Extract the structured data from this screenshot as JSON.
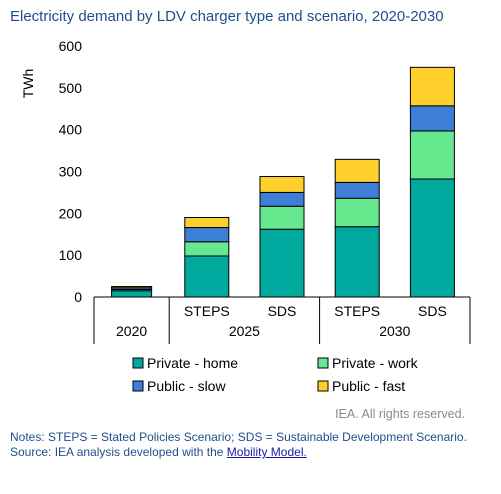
{
  "title": "Electricity demand by LDV charger type and scenario, 2020-2030",
  "credit": "IEA. All rights reserved.",
  "notes": {
    "line1": "Notes: STEPS = Stated Policies Scenario; SDS = Sustainable Development Scenario.",
    "source_prefix": "Source: IEA analysis developed with the ",
    "source_link": "Mobility Model."
  },
  "chart_data": {
    "type": "bar",
    "stacked": true,
    "ylabel": "TWh",
    "ylim": [
      0,
      600
    ],
    "yticks": [
      0,
      100,
      200,
      300,
      400,
      500,
      600
    ],
    "grid": false,
    "legend_position": "bottom",
    "categories": [
      "2020",
      "2025 STEPS",
      "2025 SDS",
      "2030 STEPS",
      "2030 SDS"
    ],
    "bar_labels": [
      "",
      "STEPS",
      "SDS",
      "STEPS",
      "SDS"
    ],
    "year_groups": [
      {
        "label": "2020",
        "bars": [
          0
        ]
      },
      {
        "label": "2025",
        "bars": [
          1,
          2
        ]
      },
      {
        "label": "2030",
        "bars": [
          3,
          4
        ]
      }
    ],
    "series": [
      {
        "name": "Private - home",
        "color": "#00a99d",
        "values": [
          15,
          98,
          162,
          168,
          282
        ]
      },
      {
        "name": "Private - work",
        "color": "#66e88e",
        "values": [
          3,
          34,
          55,
          68,
          115
        ]
      },
      {
        "name": "Public - slow",
        "color": "#3d7fd8",
        "values": [
          4,
          34,
          33,
          38,
          60
        ]
      },
      {
        "name": "Public - fast",
        "color": "#ffd02b",
        "values": [
          3,
          24,
          38,
          55,
          92
        ]
      }
    ]
  }
}
